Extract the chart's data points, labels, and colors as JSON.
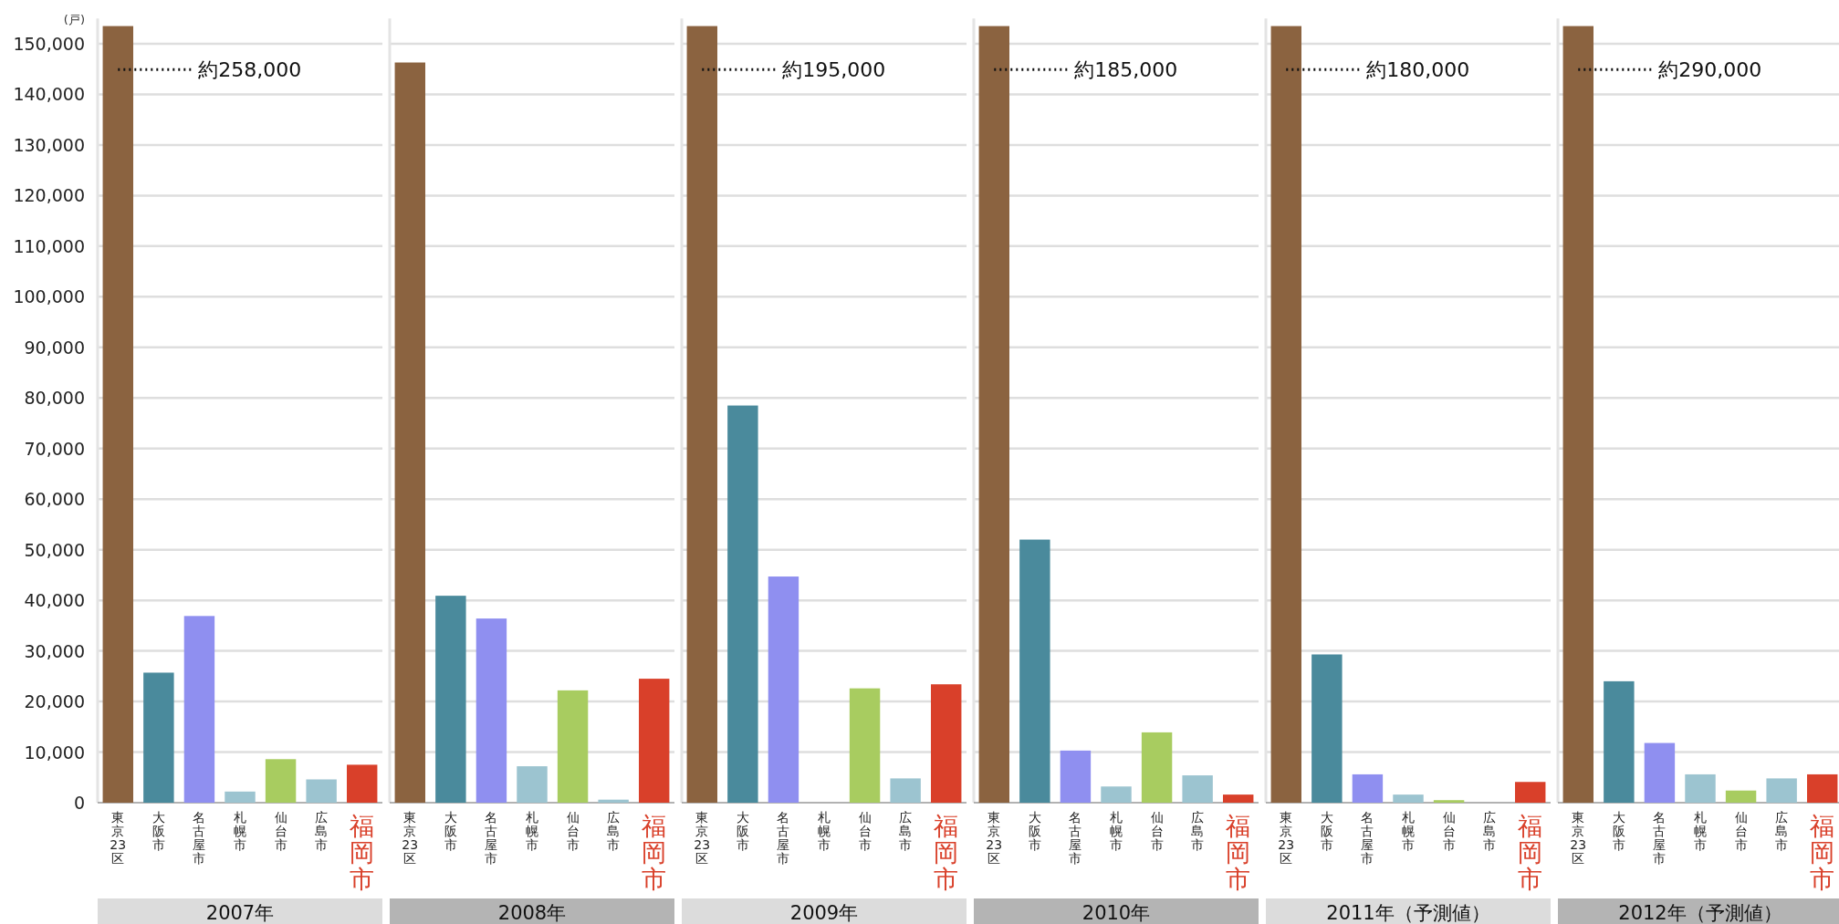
{
  "chart_data": [
    {
      "type": "bar",
      "title": "2007年",
      "ylabel": "(戸)",
      "categories": [
        "東京23区",
        "大阪市",
        "名古屋市",
        "札幌市",
        "仙台市",
        "広島市",
        "福岡市"
      ],
      "colors": [
        "#8b6340",
        "#4a8a9c",
        "#8f8ff0",
        "#9cc4d0",
        "#a8cc60",
        "#9cc4d0",
        "#d9402a"
      ],
      "values": [
        153500,
        25700,
        36900,
        2200,
        8600,
        4600,
        7500
      ],
      "ylim": [
        0,
        155000
      ],
      "yticks": [
        0,
        {
          "value": 10000,
          "label": "10,000"
        },
        {
          "value": 20000,
          "label": "20,000"
        },
        {
          "value": 30000,
          "label": "30,000"
        },
        {
          "value": 40000,
          "label": "40,000"
        },
        {
          "value": 50000,
          "label": "50,000"
        },
        {
          "value": 60000,
          "label": "60,000"
        },
        {
          "value": 70000,
          "label": "70,000"
        },
        {
          "value": 80000,
          "label": "80,000"
        },
        {
          "value": 90000,
          "label": "90,000"
        },
        {
          "value": 100000,
          "label": "100,000"
        },
        {
          "value": 110000,
          "label": "110,000"
        },
        {
          "value": 120000,
          "label": "120,000"
        },
        {
          "value": 130000,
          "label": "130,000"
        },
        {
          "value": 140000,
          "label": "140,000"
        },
        {
          "value": 150000,
          "label": "150,000"
        }
      ],
      "grid": "y",
      "annotations": [
        "約258,000"
      ]
    },
    {
      "type": "bar",
      "title": "2008年",
      "categories": [
        "東京23区",
        "大阪市",
        "名古屋市",
        "札幌市",
        "仙台市",
        "広島市",
        "福岡市"
      ],
      "colors": [
        "#8b6340",
        "#4a8a9c",
        "#8f8ff0",
        "#9cc4d0",
        "#a8cc60",
        "#9cc4d0",
        "#d9402a"
      ],
      "values": [
        146300,
        40900,
        36400,
        7200,
        22200,
        600,
        24500
      ],
      "ylim": [
        0,
        155000
      ],
      "grid": "y",
      "tick_labels": "x"
    },
    {
      "type": "bar",
      "title": "2009年",
      "categories": [
        "東京23区",
        "大阪市",
        "名古屋市",
        "札幌市",
        "仙台市",
        "広島市",
        "福岡市"
      ],
      "colors": [
        "#8b6340",
        "#4a8a9c",
        "#8f8ff0",
        "#9cc4d0",
        "#a8cc60",
        "#9cc4d0",
        "#d9402a"
      ],
      "values": [
        153500,
        78500,
        44700,
        null,
        22600,
        4800,
        23400
      ],
      "ylim": [
        0,
        155000
      ],
      "grid": "y",
      "tick_labels": "x",
      "annotations": [
        "約195,000"
      ]
    },
    {
      "type": "bar",
      "title": "2010年",
      "categories": [
        "東京23区",
        "大阪市",
        "名古屋市",
        "札幌市",
        "仙台市",
        "広島市",
        "福岡市"
      ],
      "colors": [
        "#8b6340",
        "#4a8a9c",
        "#8f8ff0",
        "#9cc4d0",
        "#a8cc60",
        "#9cc4d0",
        "#d9402a"
      ],
      "values": [
        153500,
        52000,
        10300,
        3200,
        13900,
        5400,
        1600
      ],
      "ylim": [
        0,
        155000
      ],
      "grid": "y",
      "tick_labels": "x",
      "annotations": [
        "約185,000"
      ]
    },
    {
      "type": "bar",
      "title": "2011年（予測値）",
      "categories": [
        "東京23区",
        "大阪市",
        "名古屋市",
        "札幌市",
        "仙台市",
        "広島市",
        "福岡市"
      ],
      "colors": [
        "#8b6340",
        "#4a8a9c",
        "#8f8ff0",
        "#9cc4d0",
        "#a8cc60",
        "#9cc4d0",
        "#d9402a"
      ],
      "values": [
        153500,
        29300,
        5600,
        1600,
        500,
        null,
        4100
      ],
      "ylim": [
        0,
        155000
      ],
      "grid": "y",
      "tick_labels": "x",
      "annotations": [
        "約180,000"
      ]
    },
    {
      "type": "bar",
      "title": "2012年（予測値）",
      "categories": [
        "東京23区",
        "大阪市",
        "名古屋市",
        "札幌市",
        "仙台市",
        "広島市",
        "福岡市"
      ],
      "colors": [
        "#8b6340",
        "#4a8a9c",
        "#8f8ff0",
        "#9cc4d0",
        "#a8cc60",
        "#9cc4d0",
        "#d9402a"
      ],
      "values": [
        153500,
        24000,
        11800,
        5600,
        2400,
        4800,
        5600
      ],
      "ylim": [
        0,
        155000
      ],
      "grid": "y",
      "tick_labels": "x",
      "annotations": [
        "約290,000"
      ]
    }
  ]
}
